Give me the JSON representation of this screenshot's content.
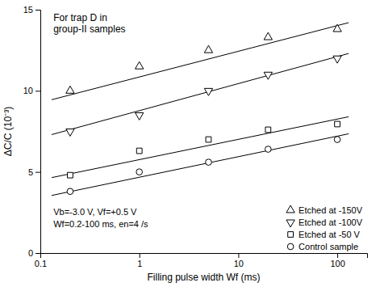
{
  "chart_data": {
    "type": "scatter",
    "title": "For trap D in\ngroup-II samples",
    "x_label": "Filling pulse width Wf  (ms)",
    "y_label": "ΔC/C  (10⁻³)",
    "annotations": [
      "Vb=-3.0 V, Vf=+0.5 V",
      "Wf=0.2-100 ms, en=4 /s"
    ],
    "log": "x",
    "xlim": [
      0.1,
      200
    ],
    "ylim": [
      0,
      15
    ],
    "xticks": [
      0.1,
      1,
      10,
      100
    ],
    "yticks": [
      0,
      5,
      10,
      15
    ],
    "legend": "lower right",
    "color": "black",
    "series": [
      {
        "name": "Etched at -150V",
        "marker": "triangle-up",
        "x": [
          0.2,
          1.0,
          5.0,
          20.0,
          100.0
        ],
        "values": [
          10.0,
          11.5,
          12.5,
          13.3,
          13.8
        ],
        "fit_x": [
          0.13,
          130
        ],
        "fit_y": [
          9.45,
          14.2
        ]
      },
      {
        "name": "Etched at -100V",
        "marker": "triangle-down",
        "x": [
          0.2,
          1.0,
          5.0,
          20.0,
          100.0
        ],
        "values": [
          7.5,
          8.5,
          10.0,
          11.0,
          12.0
        ],
        "fit_x": [
          0.13,
          130
        ],
        "fit_y": [
          7.3,
          12.3
        ]
      },
      {
        "name": "Etched at -50 V",
        "marker": "square",
        "x": [
          0.2,
          1.0,
          5.0,
          20.0,
          100.0
        ],
        "values": [
          4.8,
          6.3,
          7.0,
          7.6,
          7.95
        ],
        "fit_x": [
          0.13,
          130
        ],
        "fit_y": [
          4.65,
          8.4
        ]
      },
      {
        "name": "Control sample",
        "marker": "circle",
        "x": [
          0.2,
          1.0,
          5.0,
          20.0,
          100.0
        ],
        "values": [
          3.8,
          5.0,
          5.6,
          6.4,
          7.0
        ],
        "fit_x": [
          0.13,
          130
        ],
        "fit_y": [
          3.55,
          7.35
        ]
      }
    ]
  }
}
